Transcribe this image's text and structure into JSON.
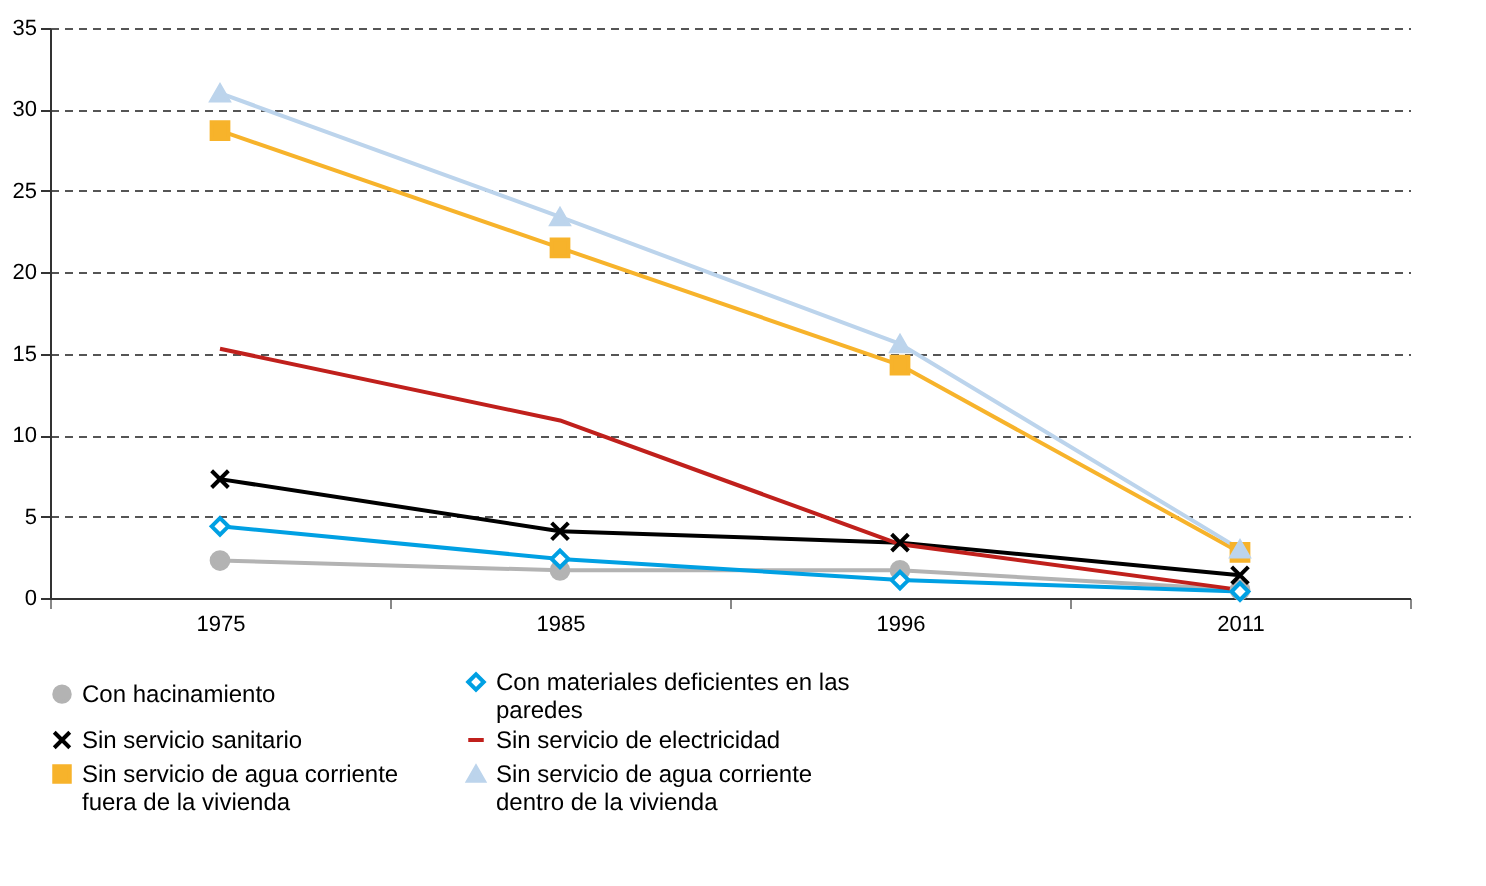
{
  "chart_data": {
    "type": "line",
    "categories": [
      "1975",
      "1985",
      "1996",
      "2011"
    ],
    "ylim": [
      0,
      35
    ],
    "yticks": [
      0,
      5,
      10,
      15,
      20,
      25,
      30,
      35
    ],
    "grid": "y",
    "legend": "bottom",
    "line_style": "solid",
    "series": [
      {
        "name": "Con hacinamiento",
        "color": "#b3b3b3",
        "marker": "circle",
        "values": [
          2.3,
          1.7,
          1.7,
          0.5
        ]
      },
      {
        "name": "Con materiales deficientes en las paredes",
        "color": "#00a0e3",
        "marker": "diamond",
        "values": [
          4.4,
          2.4,
          1.1,
          0.4
        ]
      },
      {
        "name": "Sin servicio sanitario",
        "color": "#000000",
        "marker": "cross",
        "values": [
          7.3,
          4.1,
          3.4,
          1.4
        ]
      },
      {
        "name": "Sin servicio de electricidad",
        "color": "#c0201c",
        "marker": "none",
        "values": [
          15.3,
          10.9,
          3.3,
          0.5
        ]
      },
      {
        "name": "Sin servicio de agua corriente fuera de la vivienda",
        "color": "#f7b32b",
        "marker": "square",
        "values": [
          28.7,
          21.5,
          14.3,
          2.8
        ]
      },
      {
        "name": "Sin servicio de agua corriente dentro de la vivienda",
        "color": "#bcd4ec",
        "marker": "triangle",
        "values": [
          31.0,
          23.4,
          15.6,
          3.0
        ]
      }
    ]
  }
}
